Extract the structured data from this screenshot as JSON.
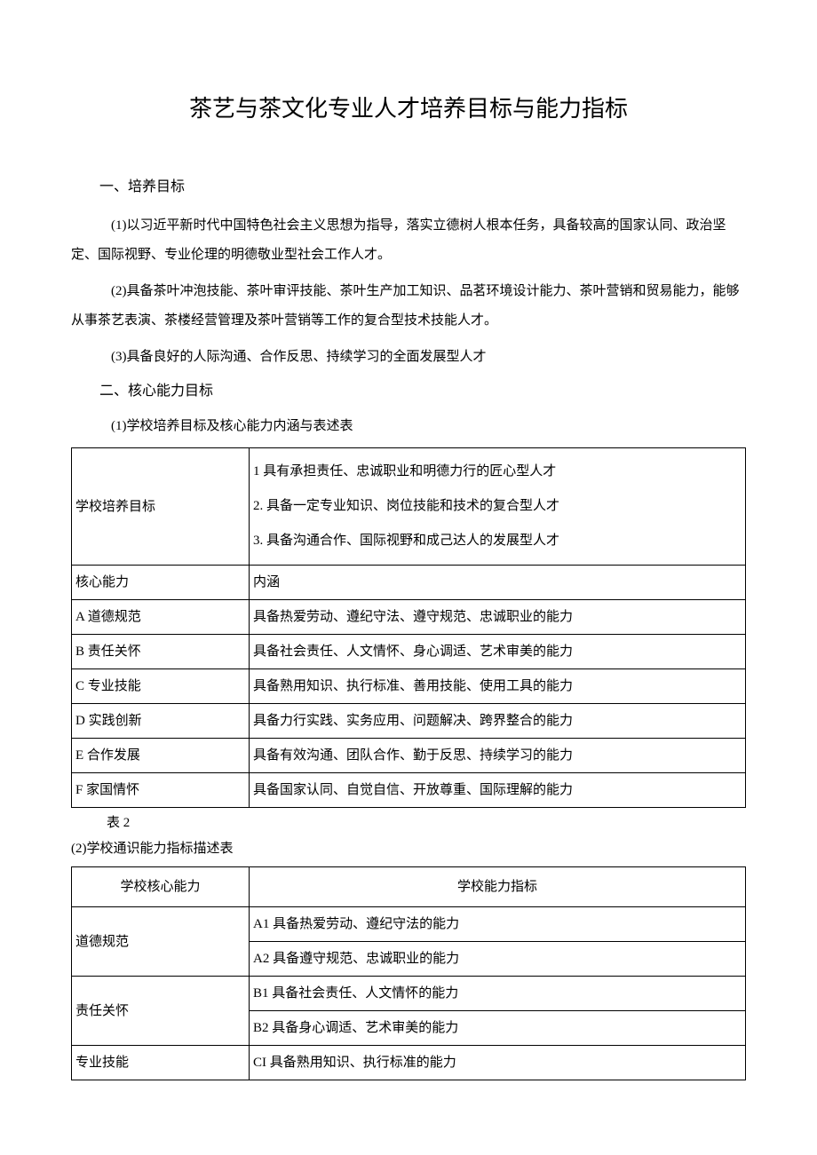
{
  "title": "茶艺与茶文化专业人才培养目标与能力指标",
  "section1": {
    "heading": "一、培养目标",
    "p1": "(1)以习近平新时代中国特色社会主义思想为指导，落实立德树人根本任务，具备较高的国家认同、政治坚定、国际视野、专业伦理的明德敬业型社会工作人才。",
    "p2": "(2)具备茶叶冲泡技能、茶叶审评技能、茶叶生产加工知识、品茗环境设计能力、茶叶营销和贸易能力，能够从事茶艺表演、茶楼经营管理及茶叶营销等工作的复合型技术技能人才。",
    "p3": "(3)具备良好的人际沟通、合作反思、持续学习的全面发展型人才"
  },
  "section2": {
    "heading": "二、核心能力目标",
    "sub1": "(1)学校培养目标及核心能力内涵与表述表",
    "caption": "表 2",
    "sub2": "(2)学校通识能力指标描述表"
  },
  "table1": {
    "row1_left": "学校培养目标",
    "row1_right": "1 具有承担责任、忠诚职业和明德力行的匠心型人才\n2. 具备一定专业知识、岗位技能和技术的复合型人才\n3. 具备沟通合作、国际视野和成己达人的发展型人才",
    "header_left": "核心能力",
    "header_right": "内涵",
    "rows": [
      {
        "l": "A 道德规范",
        "r": "具备热爱劳动、遵纪守法、遵守规范、忠诚职业的能力"
      },
      {
        "l": "B 责任关怀",
        "r": "具备社会责任、人文情怀、身心调适、艺术审美的能力"
      },
      {
        "l": "C 专业技能",
        "r": "具备熟用知识、执行标准、善用技能、使用工具的能力"
      },
      {
        "l": "D 实践创新",
        "r": "具备力行实践、实务应用、问题解决、跨界整合的能力"
      },
      {
        "l": "E 合作发展",
        "r": "具备有效沟通、团队合作、勤于反思、持续学习的能力"
      },
      {
        "l": "F 家国情怀",
        "r": "具备国家认同、自觉自信、开放尊重、国际理解的能力"
      }
    ]
  },
  "table2": {
    "header_left": "学校核心能力",
    "header_right": "学校能力指标",
    "groups": [
      {
        "name": "道德规范",
        "items": [
          "A1 具备热爱劳动、遵纪守法的能力",
          "A2 具备遵守规范、忠诚职业的能力"
        ]
      },
      {
        "name": "责任关怀",
        "items": [
          "B1 具备社会责任、人文情怀的能力",
          "B2 具备身心调适、艺术审美的能力"
        ]
      },
      {
        "name": "专业技能",
        "items": [
          "CI 具备熟用知识、执行标准的能力"
        ]
      }
    ]
  },
  "colors": {
    "text": "#000000",
    "background": "#ffffff",
    "border": "#000000"
  },
  "typography": {
    "title_fontsize": 26,
    "body_fontsize": 15,
    "font_family": "SimSun"
  }
}
